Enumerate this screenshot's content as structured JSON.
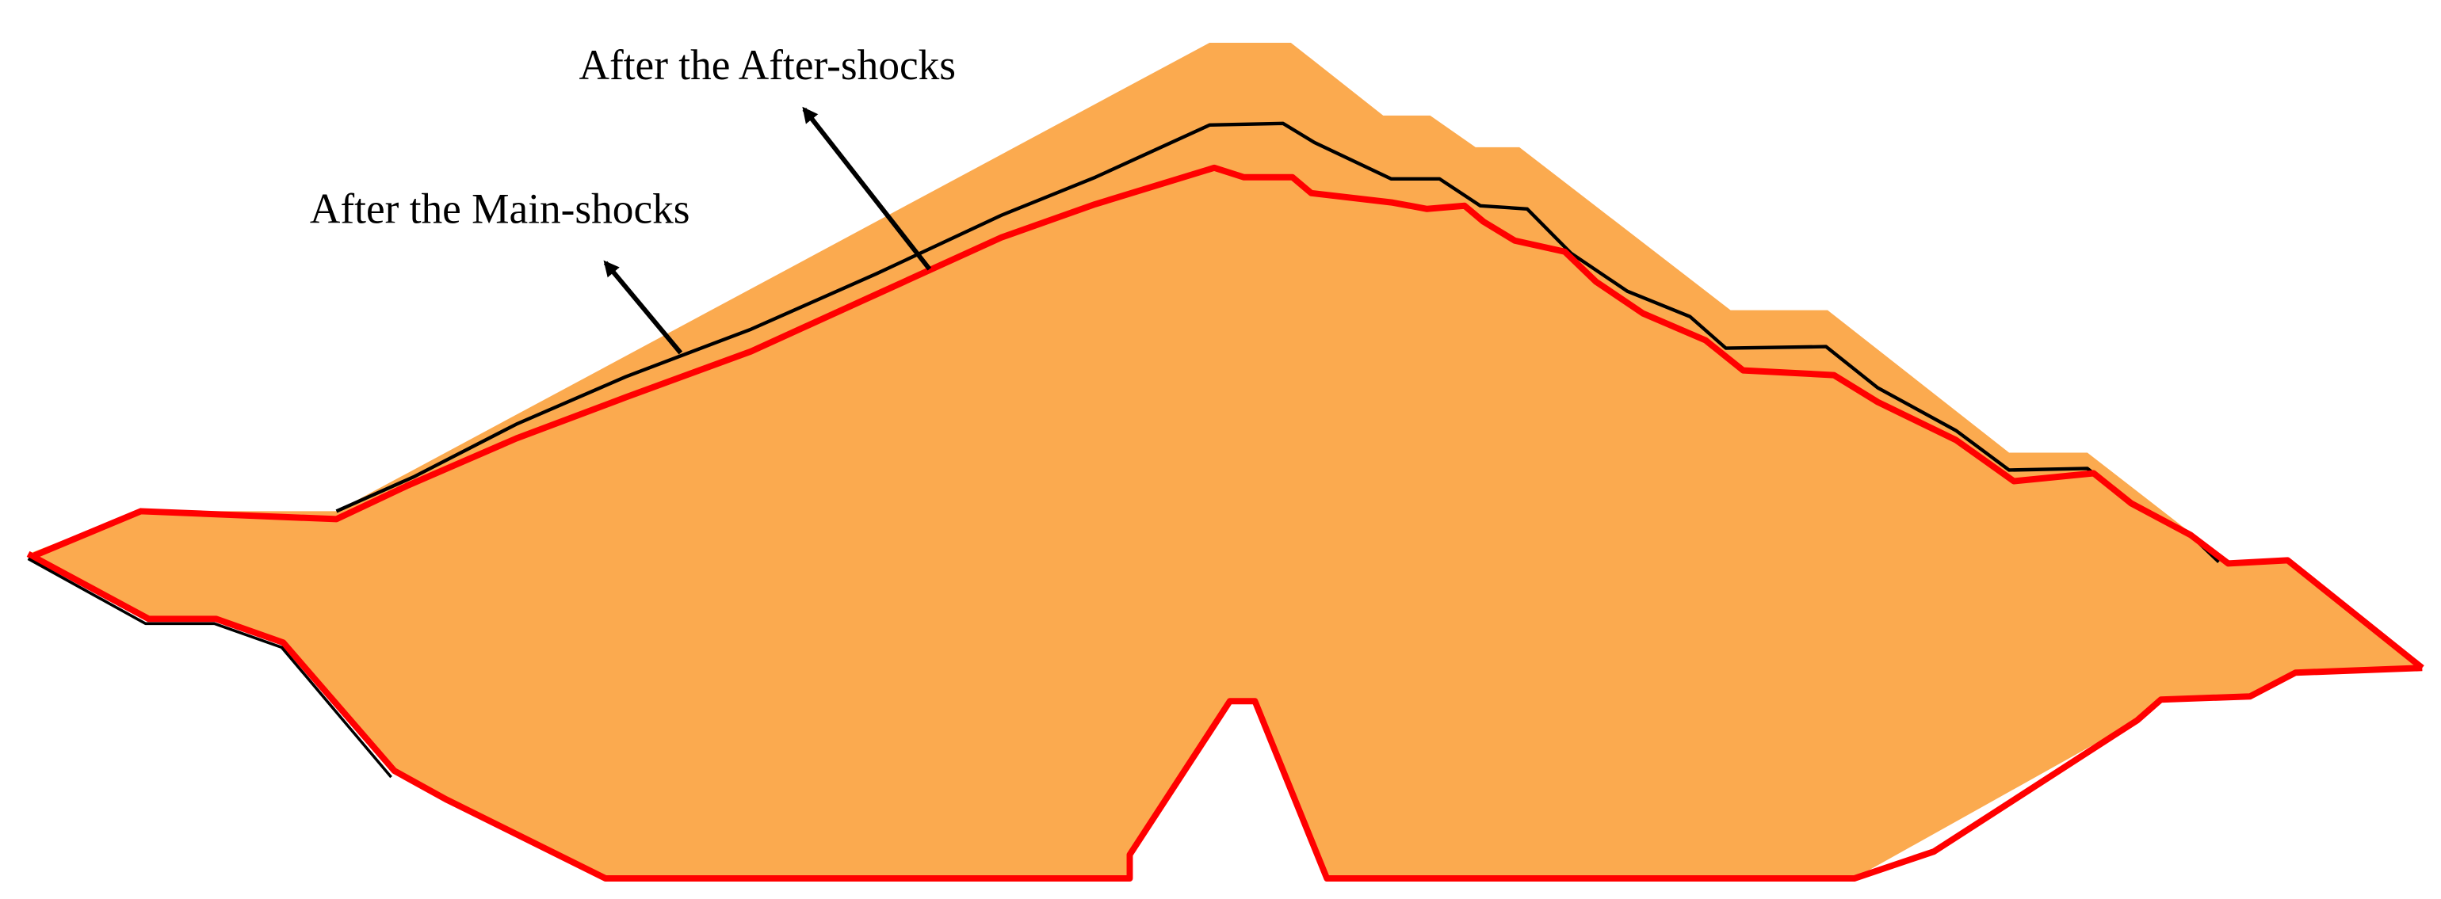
{
  "diagram": {
    "annotations": {
      "after_aftershocks": "After the After-shocks",
      "after_mainshocks": "After the Main-shocks"
    },
    "colors": {
      "original_body_fill": "#FBAA4F",
      "aftershock_profile": "#000000",
      "mainshock_profile": "#FF0000",
      "background": "#FFFFFF"
    }
  }
}
